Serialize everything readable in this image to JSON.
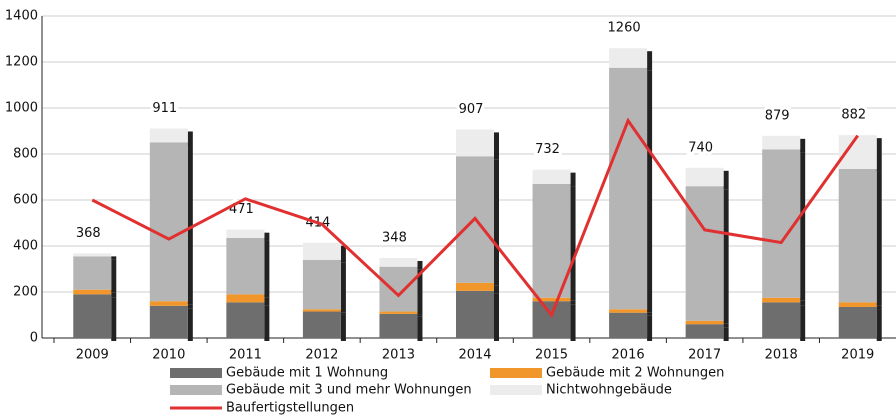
{
  "chart_data": {
    "type": "bar",
    "stacked": true,
    "categories": [
      "2009",
      "2010",
      "2011",
      "2012",
      "2013",
      "2014",
      "2015",
      "2016",
      "2017",
      "2018",
      "2019"
    ],
    "series": [
      {
        "name": "Gebäude mit 1 Wohnung",
        "color": "#6e6e6e",
        "values": [
          190,
          140,
          155,
          115,
          105,
          205,
          160,
          110,
          60,
          155,
          135
        ]
      },
      {
        "name": "Gebäude mit 2 Wohnungen",
        "color": "#f0962a",
        "values": [
          20,
          20,
          35,
          10,
          10,
          35,
          15,
          15,
          15,
          20,
          20
        ]
      },
      {
        "name": "Gebäude mit 3 und mehr Wohnungen",
        "color": "#b5b5b5",
        "values": [
          145,
          690,
          245,
          215,
          195,
          550,
          495,
          1050,
          585,
          645,
          580
        ]
      },
      {
        "name": "Nichtwohngebäude",
        "color": "#ececec",
        "values": [
          13,
          61,
          36,
          74,
          38,
          117,
          62,
          85,
          80,
          59,
          147
        ]
      },
      {
        "name": "Baufertigstellungen",
        "color": "#e03030",
        "type": "line",
        "values": [
          600,
          430,
          605,
          495,
          185,
          520,
          100,
          945,
          470,
          415,
          880
        ]
      }
    ],
    "totals": [
      368,
      911,
      471,
      414,
      348,
      907,
      732,
      1260,
      740,
      879,
      882
    ],
    "ylim": [
      0,
      1400
    ],
    "yticks": [
      0,
      200,
      400,
      600,
      800,
      1000,
      1200,
      1400
    ],
    "grid": true
  }
}
